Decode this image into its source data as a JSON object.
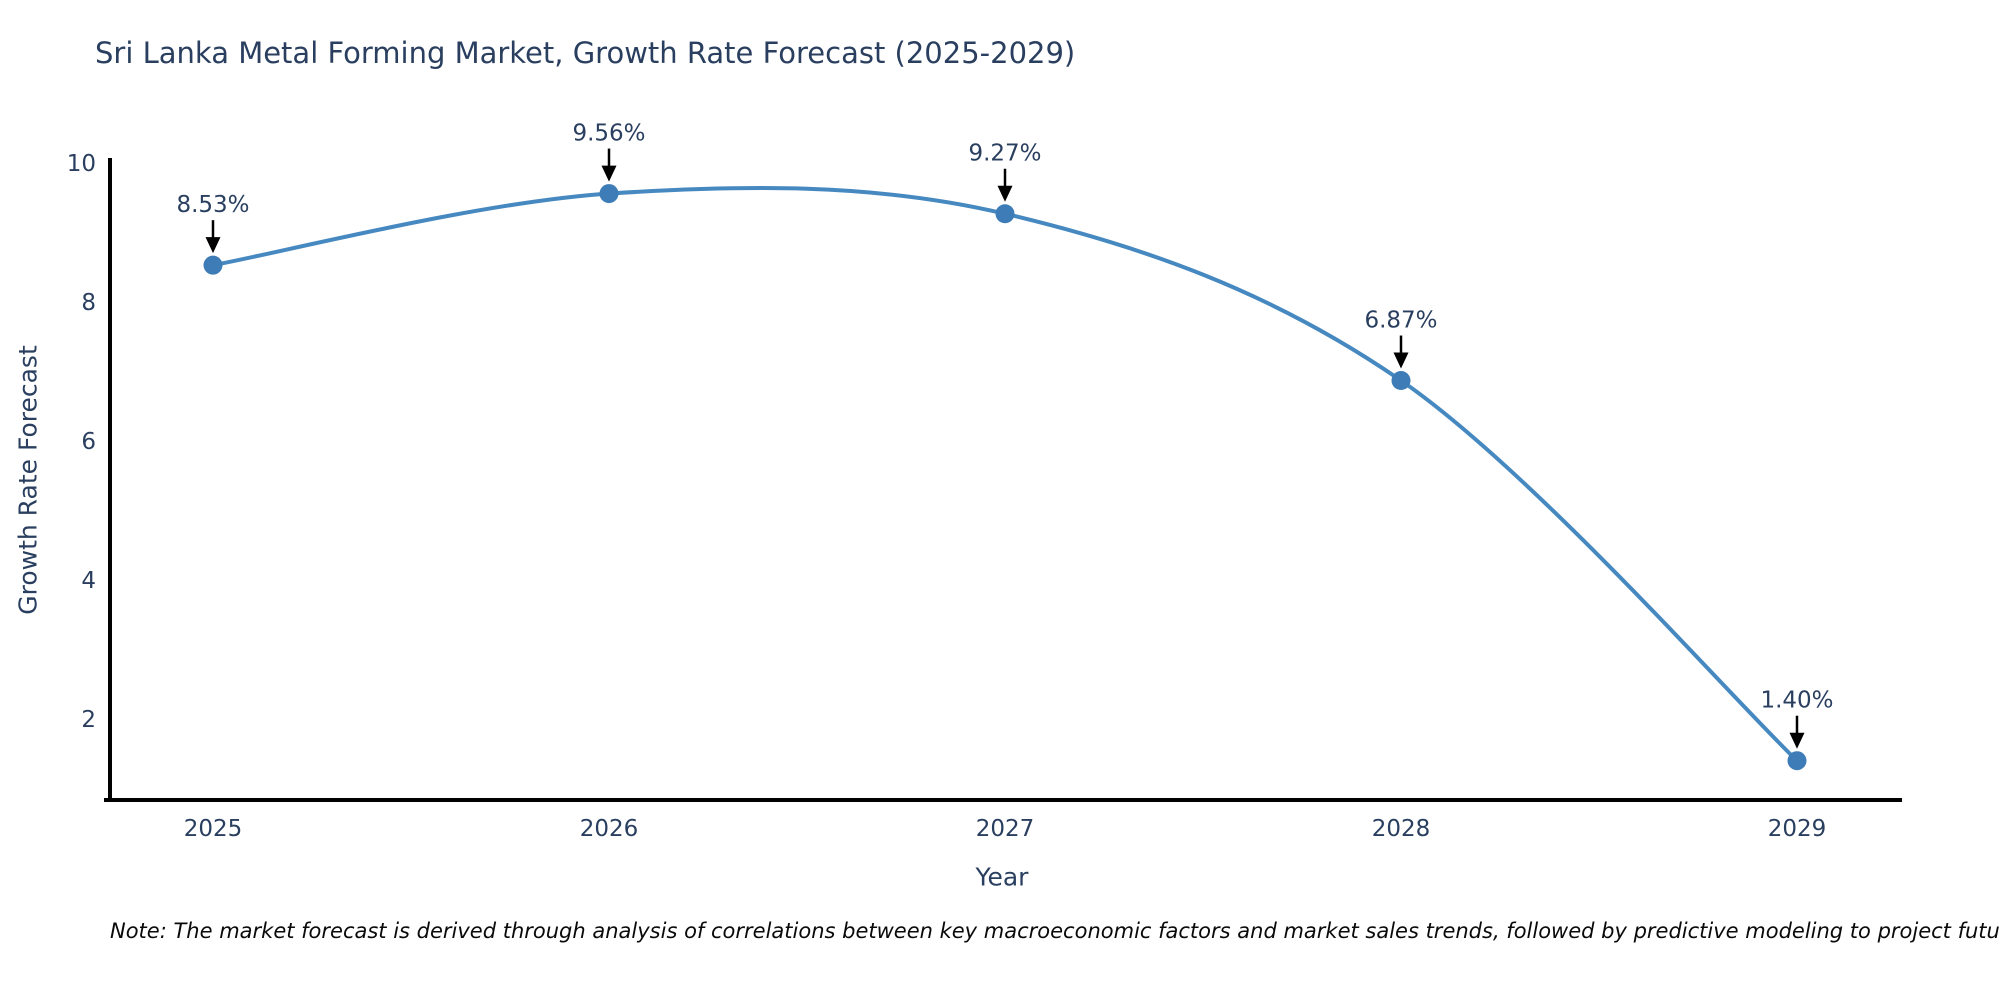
{
  "title": "Sri Lanka Metal Forming Market, Growth Rate Forecast (2025-2029)",
  "note": "Note: The market forecast is derived through analysis of correlations between key macroeconomic factors and market sales trends, followed by predictive modeling to project future sales",
  "chart_data": {
    "type": "line",
    "title": "Sri Lanka Metal Forming Market, Growth Rate Forecast (2025-2029)",
    "xlabel": "Year",
    "ylabel": "Growth Rate Forecast",
    "categories": [
      "2025",
      "2026",
      "2027",
      "2028",
      "2029"
    ],
    "series": [
      {
        "name": "Growth Rate Forecast",
        "values": [
          8.53,
          9.56,
          9.27,
          6.87,
          1.4
        ],
        "point_labels": [
          "8.53%",
          "9.56%",
          "9.27%",
          "6.87%",
          "1.40%"
        ]
      }
    ],
    "yticks": [
      2,
      4,
      6,
      8,
      10
    ],
    "ylim": [
      0.83,
      10.07
    ],
    "grid": false,
    "legend_position": "none",
    "curve": "spline",
    "colors": {
      "line": "#4688c0",
      "marker": "#3d7cb6",
      "axis_line": "#000000",
      "tick_text": "#2a3f5f",
      "annotation_text": "#2a3f5f",
      "annotation_arrow": "#000000",
      "title_text": "#2a3f5f"
    }
  }
}
